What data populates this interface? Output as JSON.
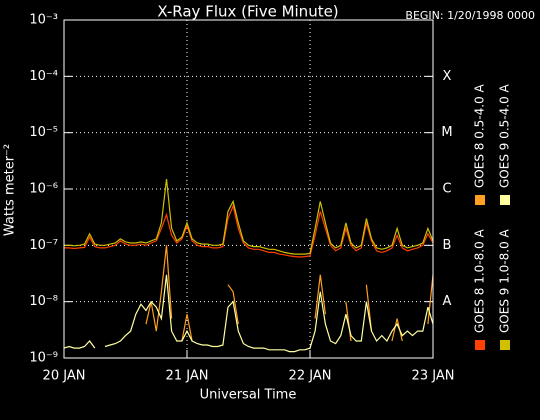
{
  "chart_data": {
    "type": "line",
    "title": "X-Ray Flux (Five Minute)",
    "subtitle": "BEGIN: 1/20/1998 0000",
    "xlabel": "Universal Time",
    "ylabel": "Watts meter⁻²",
    "log_y": true,
    "grid": true,
    "legend": "right",
    "xlim": [
      0,
      72
    ],
    "xticks": [
      {
        "value": 0,
        "label": "20 JAN"
      },
      {
        "value": 24,
        "label": "21 JAN"
      },
      {
        "value": 48,
        "label": "22 JAN"
      },
      {
        "value": 72,
        "label": "23 JAN"
      }
    ],
    "ylim": [
      1e-09,
      0.001
    ],
    "yticks": [
      {
        "value": 1e-09,
        "label": "10⁻⁹"
      },
      {
        "value": 1e-08,
        "label": "10⁻⁸"
      },
      {
        "value": 1e-07,
        "label": "10⁻⁷"
      },
      {
        "value": 1e-06,
        "label": "10⁻⁶"
      },
      {
        "value": 1e-05,
        "label": "10⁻⁵"
      },
      {
        "value": 0.0001,
        "label": "10⁻⁴"
      },
      {
        "value": 0.001,
        "label": "10⁻³"
      }
    ],
    "right_labels": [
      {
        "value": 0.0001,
        "label": "X"
      },
      {
        "value": 1e-05,
        "label": "M"
      },
      {
        "value": 1e-06,
        "label": "C"
      },
      {
        "value": 1e-07,
        "label": "B"
      },
      {
        "value": 1e-08,
        "label": "A"
      }
    ],
    "x": [
      0,
      1,
      2,
      3,
      4,
      5,
      6,
      7,
      8,
      9,
      10,
      11,
      12,
      13,
      14,
      15,
      16,
      17,
      18,
      19,
      20,
      21,
      22,
      23,
      24,
      25,
      26,
      27,
      28,
      29,
      30,
      31,
      32,
      33,
      34,
      35,
      36,
      37,
      38,
      39,
      40,
      41,
      42,
      43,
      44,
      45,
      46,
      47,
      48,
      49,
      50,
      51,
      52,
      53,
      54,
      55,
      56,
      57,
      58,
      59,
      60,
      61,
      62,
      63,
      64,
      65,
      66,
      67,
      68,
      69,
      70,
      71,
      72
    ],
    "series": [
      {
        "name": "GOES 8 1.0-8.0 A",
        "color": "#ff4000",
        "values": [
          9e-08,
          9e-08,
          8.8e-08,
          9e-08,
          9.2e-08,
          1.4e-07,
          9.5e-08,
          9e-08,
          9e-08,
          9.5e-08,
          1e-07,
          1.2e-07,
          1.05e-07,
          1e-07,
          1e-07,
          1.05e-07,
          1e-07,
          1.1e-07,
          1.2e-07,
          2e-07,
          3.5e-07,
          1.5e-07,
          1.1e-07,
          1.3e-07,
          2.2e-07,
          1.2e-07,
          1e-07,
          9.5e-08,
          9.5e-08,
          9e-08,
          9e-08,
          9.5e-08,
          3e-07,
          5e-07,
          2e-07,
          1.1e-07,
          9e-08,
          8.5e-08,
          8.5e-08,
          8e-08,
          7.5e-08,
          7.5e-08,
          7e-08,
          6.8e-08,
          6.5e-08,
          6.3e-08,
          6.2e-08,
          6.3e-08,
          6.5e-08,
          1.5e-07,
          4e-07,
          2e-07,
          1e-07,
          8e-08,
          9e-08,
          2e-07,
          1e-07,
          8e-08,
          9e-08,
          2.5e-07,
          1.2e-07,
          8e-08,
          7.5e-08,
          8e-08,
          9e-08,
          1.5e-07,
          9e-08,
          8e-08,
          8.5e-08,
          9e-08,
          1e-07,
          1.6e-07,
          1.1e-07
        ]
      },
      {
        "name": "GOES 8 0.5-4.0 A",
        "color": "#ffa020",
        "values": [
          null,
          null,
          null,
          null,
          null,
          null,
          null,
          null,
          null,
          null,
          null,
          null,
          null,
          null,
          null,
          null,
          4e-09,
          1e-08,
          3e-09,
          1.5e-08,
          1e-07,
          5e-09,
          null,
          2e-09,
          6e-09,
          2e-09,
          null,
          null,
          null,
          null,
          null,
          null,
          2e-08,
          1.5e-08,
          4e-09,
          null,
          null,
          null,
          null,
          null,
          null,
          null,
          null,
          null,
          null,
          null,
          null,
          null,
          null,
          5e-09,
          3e-08,
          6e-09,
          null,
          null,
          null,
          1e-08,
          2e-09,
          null,
          null,
          2e-08,
          3e-09,
          null,
          null,
          null,
          2e-09,
          5e-09,
          2e-09,
          null,
          null,
          null,
          null,
          4e-09,
          3e-08
        ]
      },
      {
        "name": "GOES 9 1.0-8.0 A",
        "color": "#d0c000",
        "values": [
          1e-07,
          1e-07,
          9.8e-08,
          1e-07,
          1.05e-07,
          1.6e-07,
          1.05e-07,
          1e-07,
          1e-07,
          1.05e-07,
          1.1e-07,
          1.3e-07,
          1.15e-07,
          1.1e-07,
          1.1e-07,
          1.15e-07,
          1.1e-07,
          1.2e-07,
          1.3e-07,
          2.5e-07,
          1.5e-06,
          2e-07,
          1.2e-07,
          1.4e-07,
          2.5e-07,
          1.3e-07,
          1.1e-07,
          1.05e-07,
          1.05e-07,
          1e-07,
          1e-07,
          1.05e-07,
          4e-07,
          6e-07,
          2.5e-07,
          1.2e-07,
          1e-07,
          9.5e-08,
          9.5e-08,
          9e-08,
          8.5e-08,
          8.5e-08,
          8e-08,
          7.5e-08,
          7.2e-08,
          7e-08,
          7e-08,
          7e-08,
          7.2e-08,
          2e-07,
          6e-07,
          2.5e-07,
          1.1e-07,
          9e-08,
          1e-07,
          2.5e-07,
          1.1e-07,
          9e-08,
          1e-07,
          3e-07,
          1.3e-07,
          9e-08,
          8.5e-08,
          9e-08,
          1e-07,
          2e-07,
          1e-07,
          9e-08,
          9.5e-08,
          1e-07,
          1.1e-07,
          2e-07,
          1.2e-07
        ]
      },
      {
        "name": "GOES 9 0.5-4.0 A",
        "color": "#ffffa0",
        "values": [
          1.5e-09,
          1.6e-09,
          1.5e-09,
          1.5e-09,
          1.6e-09,
          2e-09,
          1.5e-09,
          null,
          1.6e-09,
          1.7e-09,
          1.8e-09,
          2e-09,
          2.5e-09,
          3e-09,
          6e-09,
          9e-09,
          7e-09,
          1e-08,
          8e-09,
          5e-09,
          3e-08,
          3e-09,
          2e-09,
          2e-09,
          3e-09,
          2e-09,
          1.8e-09,
          1.7e-09,
          1.7e-09,
          1.6e-09,
          1.6e-09,
          1.7e-09,
          8e-09,
          1e-08,
          3e-09,
          1.8e-09,
          1.6e-09,
          1.5e-09,
          1.5e-09,
          1.5e-09,
          1.4e-09,
          1.4e-09,
          1.4e-09,
          1.4e-09,
          1.3e-09,
          1.3e-09,
          1.4e-09,
          1.4e-09,
          1.5e-09,
          3e-09,
          1.5e-08,
          4e-09,
          2e-09,
          1.8e-09,
          2.5e-09,
          6e-09,
          2.5e-09,
          2e-09,
          2e-09,
          1e-08,
          3e-09,
          2e-09,
          2.5e-09,
          2e-09,
          3e-09,
          4e-09,
          2.5e-09,
          3e-09,
          2.5e-09,
          3e-09,
          3e-09,
          8e-09,
          4e-09
        ]
      }
    ]
  }
}
